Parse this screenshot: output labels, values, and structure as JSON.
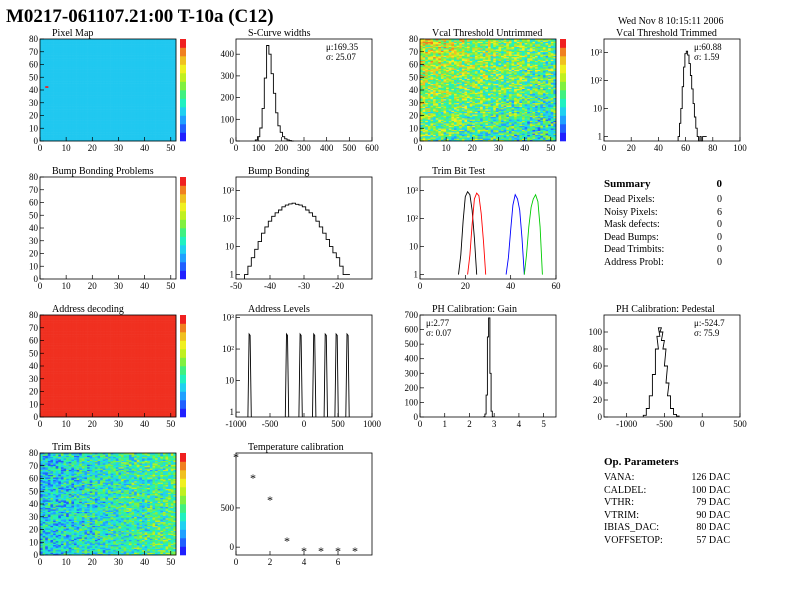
{
  "title": "M0217-061107.21:00 T-10a (C12)",
  "date": "Wed Nov  8 10:15:11 2006",
  "summary": {
    "heading": "Summary",
    "heading_value": "0",
    "rows": [
      {
        "label": "Dead Pixels:",
        "value": "0"
      },
      {
        "label": "Noisy Pixels:",
        "value": "6"
      },
      {
        "label": "Mask defects:",
        "value": "0"
      },
      {
        "label": "Dead Bumps:",
        "value": "0"
      },
      {
        "label": "Dead Trimbits:",
        "value": "0"
      },
      {
        "label": "Address Probl:",
        "value": "0"
      }
    ]
  },
  "op_params": {
    "heading": "Op. Parameters",
    "rows": [
      {
        "label": "VANA:",
        "value": "126 DAC"
      },
      {
        "label": "CALDEL:",
        "value": "100 DAC"
      },
      {
        "label": "VTHR:",
        "value": "79 DAC"
      },
      {
        "label": "VTRIM:",
        "value": "90 DAC"
      },
      {
        "label": "IBIAS_DAC:",
        "value": "80 DAC"
      },
      {
        "label": "VOFFSETOP:",
        "value": "57 DAC"
      }
    ]
  },
  "chart_data": [
    {
      "id": "pixelmap",
      "type": "heatmap",
      "title": "Pixel Map",
      "xlim": [
        0,
        52
      ],
      "ylim": [
        0,
        80
      ],
      "xticks": [
        "0",
        "10",
        "20",
        "30",
        "40",
        "50"
      ],
      "yticks": [
        "0",
        "10",
        "20",
        "30",
        "40",
        "50",
        "60",
        "70",
        "80"
      ],
      "palette_color": "#20c8f0",
      "note_pixel": {
        "x": 2,
        "y": 42
      }
    },
    {
      "id": "scurve",
      "type": "bar",
      "title": "S-Curve widths",
      "xlim": [
        0,
        600
      ],
      "ylim": [
        0,
        470
      ],
      "xticks": [
        "0",
        "100",
        "200",
        "300",
        "400",
        "500",
        "600"
      ],
      "yticks": [
        "0",
        "100",
        "200",
        "300",
        "400"
      ],
      "stats": [
        "μ:169.35",
        "σ: 25.07"
      ],
      "x": [
        90,
        100,
        110,
        120,
        130,
        140,
        150,
        160,
        170,
        180,
        190,
        200,
        210,
        220,
        230,
        240,
        250
      ],
      "values": [
        5,
        20,
        60,
        150,
        290,
        440,
        400,
        310,
        220,
        130,
        70,
        40,
        20,
        10,
        5,
        2,
        0
      ]
    },
    {
      "id": "vcal_untrimmed",
      "type": "heatmap",
      "title": "Vcal Threshold Untrimmed",
      "xlim": [
        0,
        52
      ],
      "ylim": [
        0,
        80
      ],
      "xticks": [
        "0",
        "10",
        "20",
        "30",
        "40",
        "50"
      ],
      "yticks": [
        "0",
        "10",
        "20",
        "30",
        "40",
        "50",
        "60",
        "70",
        "80"
      ]
    },
    {
      "id": "vcal_trimmed",
      "type": "bar",
      "title": "Vcal Threshold Trimmed",
      "xlim": [
        0,
        100
      ],
      "ylog": true,
      "ylim": [
        0.7,
        3000
      ],
      "xticks": [
        "0",
        "20",
        "40",
        "60",
        "80",
        "100"
      ],
      "yticks": [
        "1",
        "10",
        "10²",
        "10³"
      ],
      "stats": [
        "μ:60.88",
        "σ: 1.59"
      ],
      "x": [
        55,
        56,
        57,
        58,
        59,
        60,
        61,
        62,
        63,
        64,
        65,
        66,
        67,
        68,
        69,
        70,
        71,
        72,
        73,
        74,
        75
      ],
      "values": [
        1,
        3,
        10,
        60,
        300,
        900,
        1100,
        800,
        400,
        150,
        50,
        15,
        5,
        2,
        1,
        0,
        1,
        0,
        1,
        1,
        1
      ]
    },
    {
      "id": "bump_problems",
      "type": "heatmap",
      "title": "Bump Bonding Problems",
      "xlim": [
        0,
        52
      ],
      "ylim": [
        0,
        80
      ],
      "xticks": [
        "0",
        "10",
        "20",
        "30",
        "40",
        "50"
      ],
      "yticks": [
        "0",
        "10",
        "20",
        "30",
        "40",
        "50",
        "60",
        "70",
        "80"
      ]
    },
    {
      "id": "bump_bonding",
      "type": "bar",
      "title": "Bump Bonding",
      "xlim": [
        -50,
        -10
      ],
      "ylog": true,
      "ylim": [
        0.7,
        3000
      ],
      "xticks": [
        "-50",
        "-40",
        "-30",
        "-20"
      ],
      "yticks": [
        "1",
        "10",
        "10²",
        "10³"
      ],
      "x": [
        -47,
        -46,
        -45,
        -44,
        -43,
        -42,
        -41,
        -40,
        -39,
        -38,
        -37,
        -36,
        -35,
        -34,
        -33,
        -32,
        -31,
        -30,
        -29,
        -28,
        -27,
        -26,
        -25,
        -24,
        -23,
        -22,
        -21,
        -20,
        -19,
        -18,
        -17
      ],
      "values": [
        1,
        2,
        4,
        8,
        15,
        30,
        50,
        80,
        120,
        160,
        200,
        260,
        300,
        330,
        350,
        320,
        300,
        260,
        200,
        160,
        120,
        80,
        50,
        30,
        18,
        10,
        6,
        4,
        2,
        1,
        1
      ]
    },
    {
      "id": "trim_bit_test",
      "type": "line",
      "title": "Trim Bit Test",
      "xlim": [
        0,
        60
      ],
      "ylog": true,
      "ylim": [
        0.7,
        3000
      ],
      "xticks": [
        "0",
        "20",
        "40",
        "60"
      ],
      "yticks": [
        "1",
        "10",
        "10²",
        "10³"
      ],
      "series": [
        {
          "color": "#000000",
          "x": [
            17,
            18,
            19,
            20,
            21,
            22,
            23,
            24,
            25
          ],
          "values": [
            1,
            5,
            80,
            600,
            900,
            700,
            200,
            20,
            1
          ]
        },
        {
          "color": "#ff0000",
          "x": [
            21,
            22,
            23,
            24,
            25,
            26,
            27,
            28,
            29
          ],
          "values": [
            1,
            5,
            60,
            500,
            800,
            650,
            150,
            15,
            1
          ]
        },
        {
          "color": "#0000ff",
          "x": [
            38,
            39,
            40,
            41,
            42,
            43,
            44,
            45,
            46
          ],
          "values": [
            1,
            4,
            40,
            300,
            700,
            500,
            200,
            20,
            1
          ]
        },
        {
          "color": "#00cc00",
          "x": [
            46,
            47,
            48,
            49,
            50,
            51,
            52,
            53,
            54
          ],
          "values": [
            1,
            5,
            50,
            250,
            500,
            700,
            400,
            50,
            1
          ]
        }
      ]
    },
    {
      "id": "address_decoding",
      "type": "heatmap",
      "title": "Address decoding",
      "xlim": [
        0,
        52
      ],
      "ylim": [
        0,
        80
      ],
      "xticks": [
        "0",
        "10",
        "20",
        "30",
        "40",
        "50"
      ],
      "yticks": [
        "0",
        "10",
        "20",
        "30",
        "40",
        "50",
        "60",
        "70",
        "80"
      ]
    },
    {
      "id": "address_levels",
      "type": "bar",
      "title": "Address Levels",
      "xlim": [
        -1000,
        1000
      ],
      "ylog": true,
      "ylim": [
        0.7,
        1200
      ],
      "xticks": [
        "-1000",
        "-500",
        "0",
        "500",
        "1000"
      ],
      "yticks": [
        "1",
        "10",
        "10²",
        "10³"
      ],
      "peaks": [
        -800,
        -250,
        -50,
        150,
        320,
        480,
        640
      ],
      "peak_value": 300
    },
    {
      "id": "ph_gain",
      "type": "bar",
      "title": "PH Calibration: Gain",
      "xlim": [
        0,
        5.5
      ],
      "ylim": [
        0,
        700
      ],
      "xticks": [
        "0",
        "1",
        "2",
        "3",
        "4",
        "5"
      ],
      "yticks": [
        "0",
        "100",
        "200",
        "300",
        "400",
        "500",
        "600",
        "700"
      ],
      "stats": [
        "μ:2.77",
        "σ: 0.07"
      ],
      "x": [
        2.6,
        2.65,
        2.7,
        2.75,
        2.8,
        2.85,
        2.9,
        2.95
      ],
      "values": [
        2,
        20,
        150,
        550,
        680,
        300,
        40,
        2
      ]
    },
    {
      "id": "ph_pedestal",
      "type": "bar",
      "title": "PH Calibration: Pedestal",
      "xlim": [
        -1300,
        500
      ],
      "ylim": [
        0,
        120
      ],
      "xticks": [
        "-1000",
        "-500",
        "0",
        "500"
      ],
      "yticks": [
        "0",
        "20",
        "40",
        "60",
        "80",
        "100"
      ],
      "stats": [
        "μ:-524.7",
        "σ: 75.9"
      ],
      "x": [
        -760,
        -720,
        -680,
        -640,
        -600,
        -580,
        -560,
        -540,
        -520,
        -500,
        -480,
        -460,
        -440,
        -400,
        -360,
        -320
      ],
      "values": [
        2,
        10,
        25,
        50,
        80,
        95,
        105,
        100,
        90,
        80,
        60,
        40,
        25,
        10,
        3,
        1
      ]
    },
    {
      "id": "trim_bits",
      "type": "heatmap",
      "title": "Trim Bits",
      "xlim": [
        0,
        52
      ],
      "ylim": [
        0,
        80
      ],
      "xticks": [
        "0",
        "10",
        "20",
        "30",
        "40",
        "50"
      ],
      "yticks": [
        "0",
        "10",
        "20",
        "30",
        "40",
        "50",
        "60",
        "70",
        "80"
      ]
    },
    {
      "id": "temperature",
      "type": "scatter",
      "title": "Temperature calibration",
      "xlim": [
        0,
        8
      ],
      "ylim": [
        -100,
        1200
      ],
      "xticks": [
        "0",
        "2",
        "4",
        "6"
      ],
      "yticks": [
        "0",
        "500"
      ],
      "x": [
        0,
        1,
        2,
        3,
        4,
        5,
        6,
        7
      ],
      "values": [
        1150,
        880,
        600,
        80,
        -50,
        -50,
        -50,
        -50
      ]
    }
  ]
}
